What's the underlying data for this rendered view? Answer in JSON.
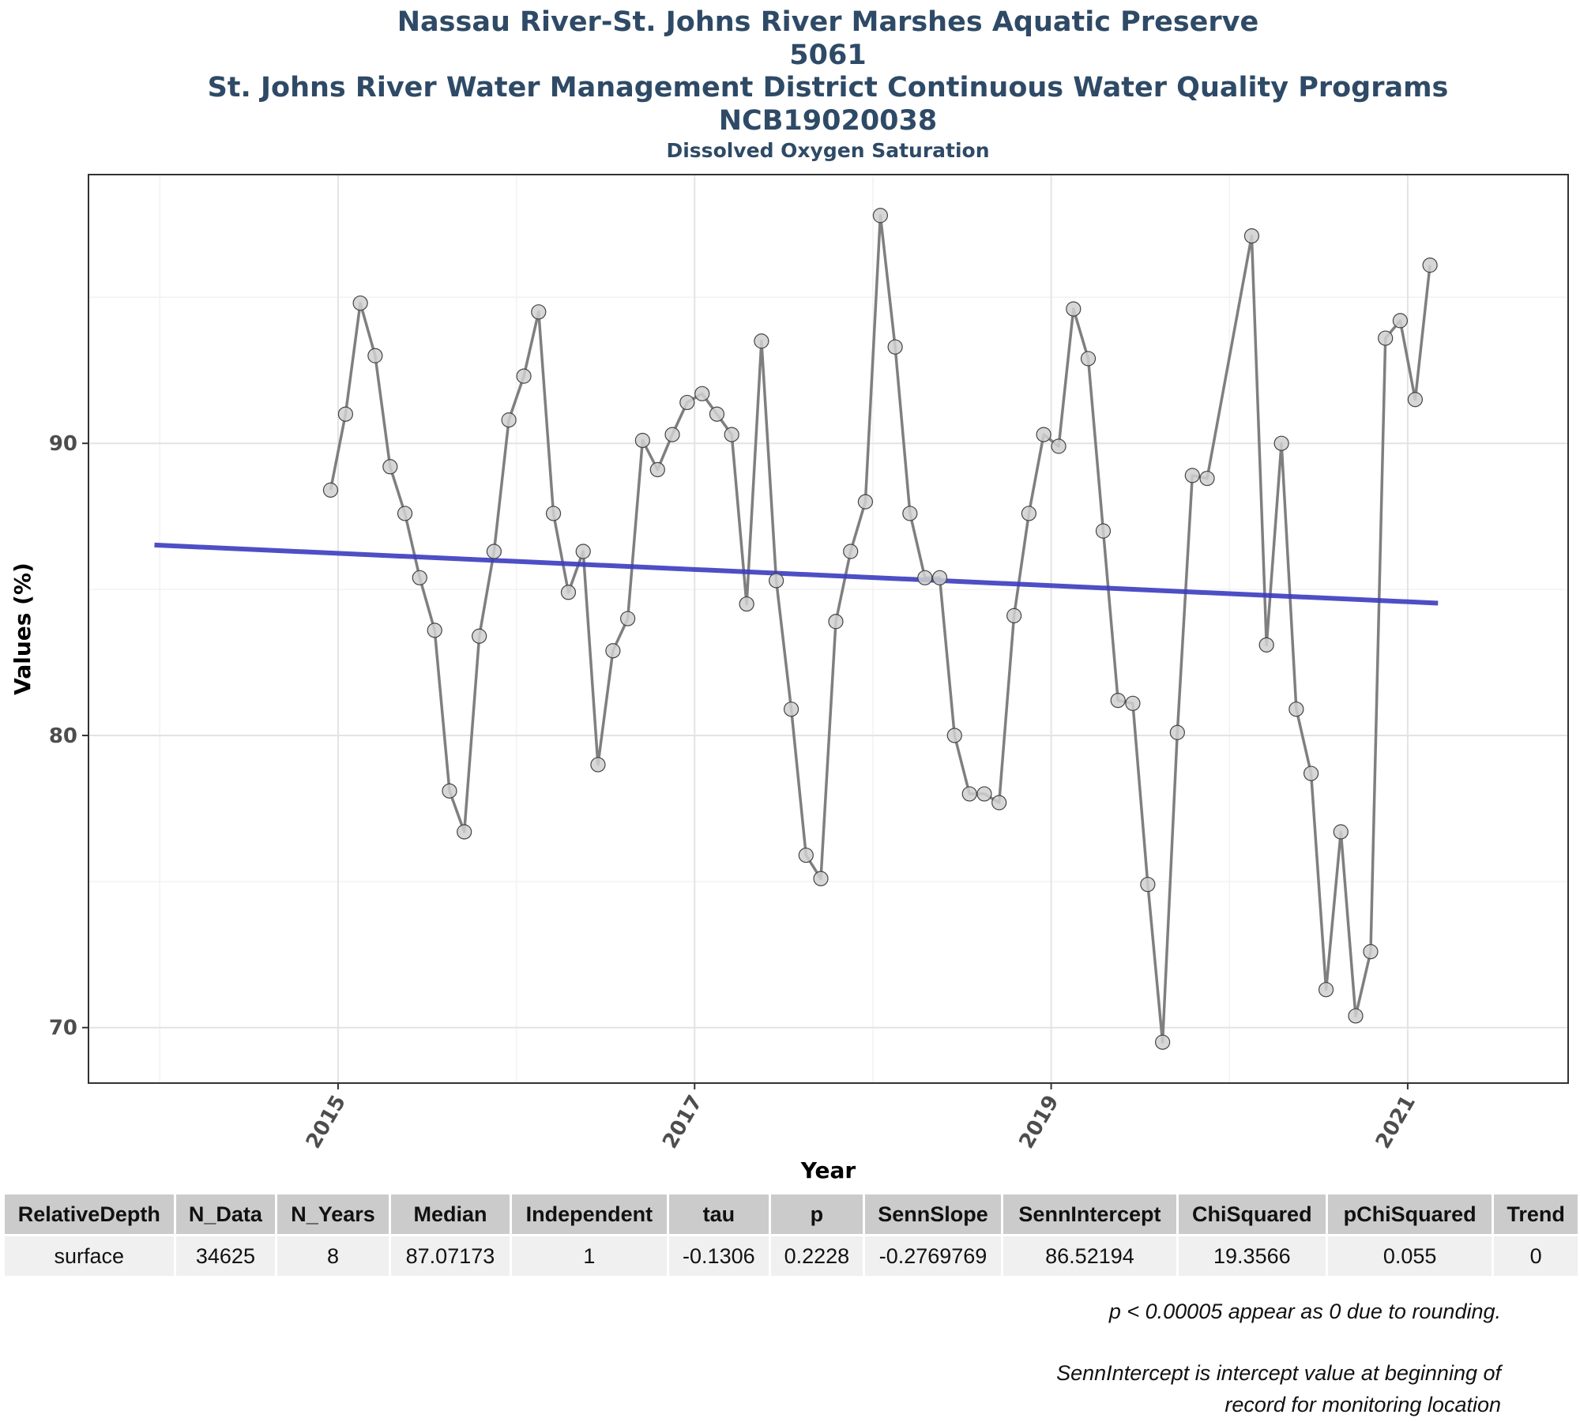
{
  "titles": {
    "line1": "Nassau River-St. Johns River Marshes Aquatic Preserve",
    "line2": "5061",
    "line3": "St. Johns River Water Management District Continuous Water Quality Programs",
    "line4": "NCB19020038",
    "subtitle": "Dissolved Oxygen Saturation"
  },
  "chart_data": {
    "type": "line",
    "title": "Nassau River-St. Johns River Marshes Aquatic Preserve",
    "subtitle": "Dissolved Oxygen Saturation",
    "xlabel": "Year",
    "ylabel": "Values (%)",
    "xlim": [
      2013.6,
      2021.9
    ],
    "ylim": [
      68.1,
      99.2
    ],
    "x_ticks": [
      2015,
      2017,
      2019,
      2021
    ],
    "y_ticks": [
      70,
      80,
      90
    ],
    "grid": true,
    "series": [
      {
        "x": [
          2014.958,
          2015.042,
          2015.125,
          2015.208,
          2015.292,
          2015.375,
          2015.458,
          2015.542,
          2015.625,
          2015.708,
          2015.792,
          2015.875,
          2015.958,
          2016.042,
          2016.125,
          2016.208,
          2016.292,
          2016.375,
          2016.458,
          2016.542,
          2016.625,
          2016.708,
          2016.792,
          2016.875,
          2016.958,
          2017.042,
          2017.125,
          2017.208,
          2017.292,
          2017.375,
          2017.458,
          2017.542,
          2017.625,
          2017.708,
          2017.792,
          2017.875,
          2017.958,
          2018.042,
          2018.125,
          2018.208,
          2018.292,
          2018.375,
          2018.458,
          2018.542,
          2018.625,
          2018.708,
          2018.792,
          2018.875,
          2018.958,
          2019.042,
          2019.125,
          2019.208,
          2019.292,
          2019.375,
          2019.458,
          2019.542,
          2019.625,
          2019.708,
          2019.792,
          2019.875,
          2020.125,
          2020.208,
          2020.292,
          2020.375,
          2020.458,
          2020.542,
          2020.625,
          2020.708,
          2020.792,
          2020.875,
          2020.958,
          2021.042,
          2021.125
        ],
        "values": [
          88.4,
          91.0,
          94.8,
          93.0,
          89.2,
          87.6,
          85.4,
          83.6,
          78.1,
          76.7,
          83.4,
          86.3,
          90.8,
          92.3,
          94.5,
          87.6,
          84.9,
          86.3,
          79.0,
          82.9,
          84.0,
          90.1,
          89.1,
          90.3,
          91.4,
          91.7,
          91.0,
          90.3,
          84.5,
          93.5,
          85.3,
          80.9,
          75.9,
          75.1,
          83.9,
          86.3,
          88.0,
          97.8,
          93.3,
          87.6,
          85.4,
          85.4,
          80.0,
          78.0,
          78.0,
          77.7,
          84.1,
          87.6,
          90.3,
          89.9,
          94.6,
          92.9,
          87.0,
          81.2,
          81.1,
          74.9,
          69.5,
          80.1,
          88.9,
          88.8,
          97.1,
          83.1,
          90.0,
          80.9,
          78.7,
          71.3,
          76.7,
          70.4,
          72.6,
          93.6,
          94.2,
          91.5,
          96.1
        ]
      }
    ],
    "trend_line": {
      "x": [
        2013.97,
        2021.17
      ],
      "values": [
        86.52,
        84.53
      ]
    },
    "colors": {
      "series": "#7f7f7f",
      "trend": "#3b3bbf",
      "point_fill": "#d0d0d0",
      "point_stroke": "#444444",
      "title": "#2e4a66"
    }
  },
  "table": {
    "headers": [
      "RelativeDepth",
      "N_Data",
      "N_Years",
      "Median",
      "Independent",
      "tau",
      "p",
      "SennSlope",
      "SennIntercept",
      "ChiSquared",
      "pChiSquared",
      "Trend"
    ],
    "rows": [
      [
        "surface",
        "34625",
        "8",
        "87.07173",
        "1",
        "-0.1306",
        "0.2228",
        "-0.2769769",
        "86.52194",
        "19.3566",
        "0.055",
        "0"
      ]
    ]
  },
  "notes": {
    "line1": "p < 0.00005 appear as 0 due to rounding.",
    "line2": "SennIntercept is intercept value at beginning of",
    "line3": "record for monitoring location"
  }
}
